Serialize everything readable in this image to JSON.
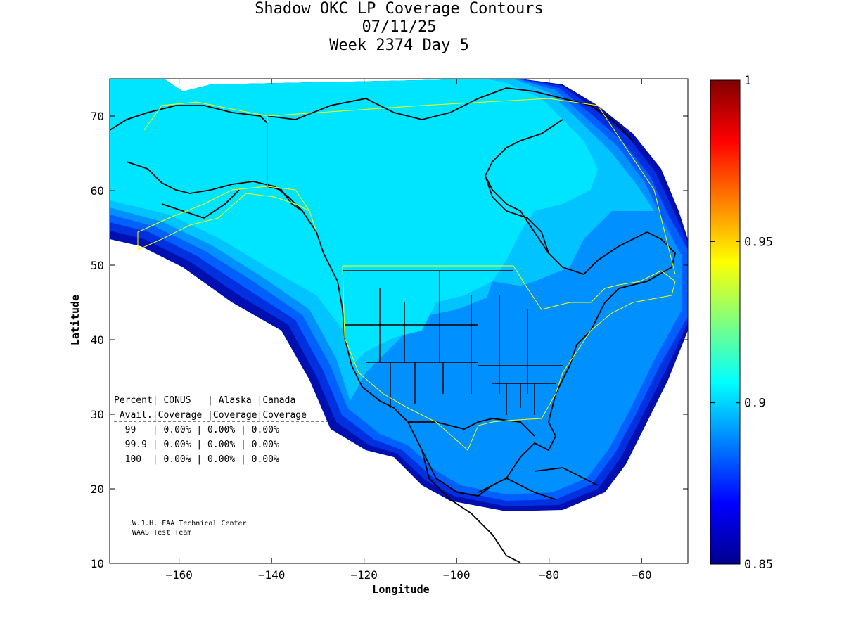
{
  "title": {
    "line1": "Shadow OKC LP Coverage Contours",
    "line2": "07/11/25",
    "line3": "Week 2374 Day 5"
  },
  "axes": {
    "xlabel": "Longitude",
    "ylabel": "Latitude",
    "xlim": [
      -175,
      -50
    ],
    "ylim": [
      10,
      75
    ],
    "xticks": [
      -160,
      -140,
      -120,
      -100,
      -80,
      -60
    ],
    "yticks": [
      10,
      20,
      30,
      40,
      50,
      60,
      70
    ]
  },
  "colorbar": {
    "min": 0.85,
    "max": 1,
    "ticks": [
      "1",
      "0.95",
      "0.9",
      "0.85"
    ],
    "colormap": "jet"
  },
  "coverage_table": {
    "header1": "Percent| CONUS   | Alaska |Canada",
    "header2": " Avail.|Coverage |Coverage|Coverage",
    "rows": [
      "  99   | 0.00% | 0.00% | 0.00%",
      "  99.9 | 0.00% | 0.00% | 0.00%",
      "  100  | 0.00% | 0.00% | 0.00%"
    ]
  },
  "credits": {
    "line1": "W.J.H. FAA Technical Center",
    "line2": "WAAS Test Team"
  },
  "colors": {
    "region_cyan": "#00e5ff",
    "region_light_blue": "#00c3ff",
    "region_mid_blue": "#0090ff",
    "region_blue": "#0060ff",
    "region_dark_blue": "#0030e0",
    "region_navy": "#0010b0",
    "boundary_yellow": "#ffff00"
  }
}
